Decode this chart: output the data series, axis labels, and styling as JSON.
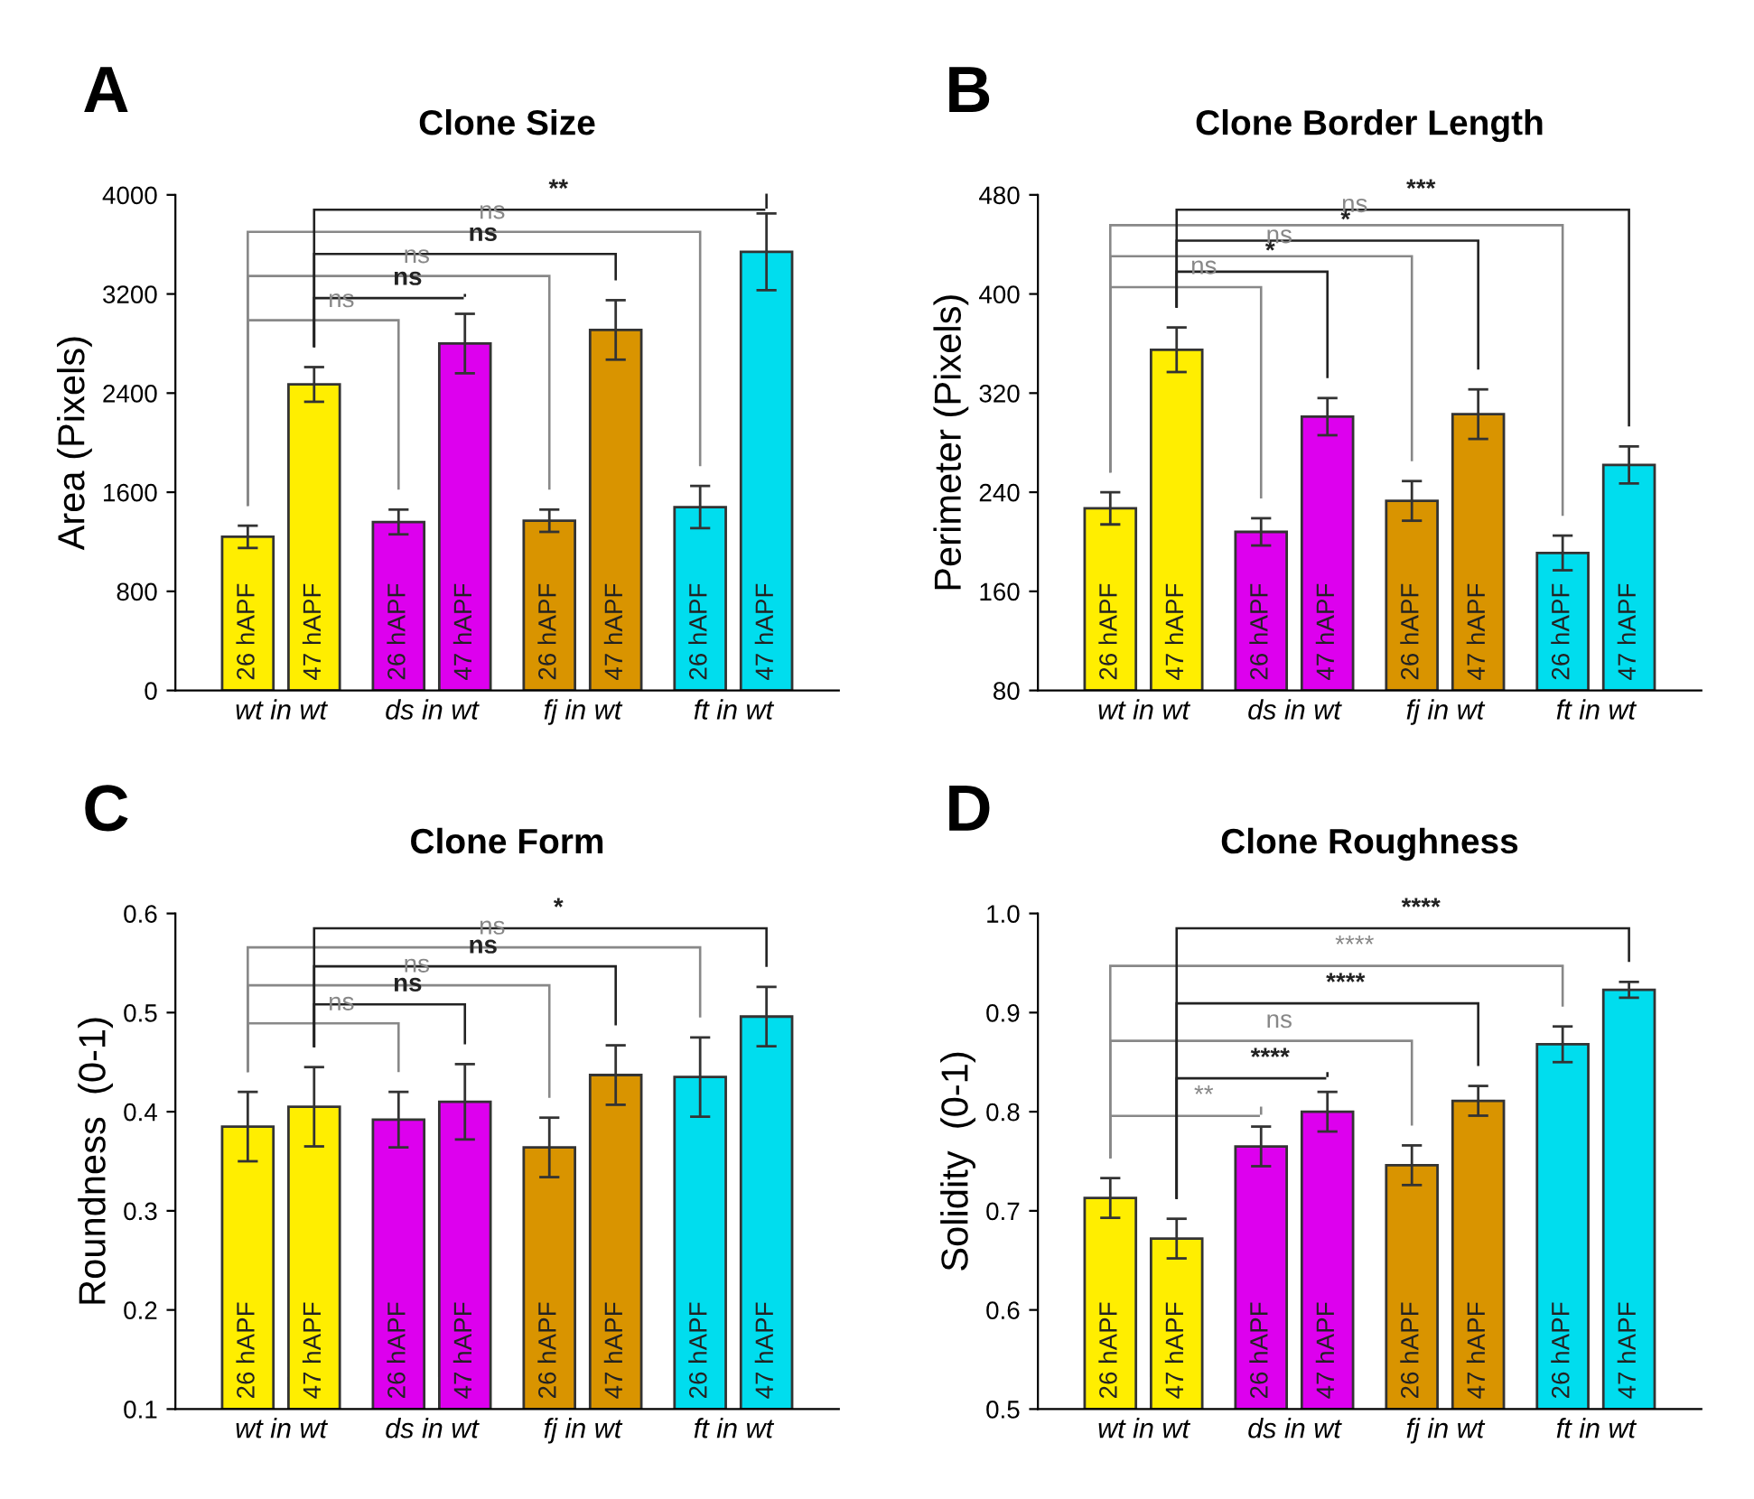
{
  "chart_data": [
    {
      "type": "bar",
      "title": "Clone Size",
      "ylabel": "Area (Pixels)",
      "categories": [
        "wt in wt",
        "ds in wt",
        "fj in wt",
        "ft in wt"
      ],
      "series": [
        {
          "name": "26 hAPF",
          "colors": [
            "#ffee00",
            "#dd00ee",
            "#d99400",
            "#00ddee"
          ],
          "values": [
            1240,
            1360,
            1370,
            1480
          ],
          "errors": [
            90,
            100,
            90,
            170
          ]
        },
        {
          "name": "47 hAPF",
          "colors": [
            "#ffee00",
            "#dd00ee",
            "#d99400",
            "#00ddee"
          ],
          "values": [
            2470,
            2800,
            2910,
            3540
          ],
          "errors": [
            140,
            240,
            240,
            310
          ]
        }
      ],
      "ylim": [
        0,
        4000
      ],
      "yticks": [
        0,
        800,
        1600,
        2400,
        3200,
        4000
      ],
      "annotations": [
        "A",
        "ns",
        "ns",
        "ns",
        "ns",
        "ns",
        "**"
      ]
    },
    {
      "type": "bar",
      "title": "Clone Border Length",
      "ylabel": "Perimeter (Pixels)",
      "categories": [
        "wt in wt",
        "ds in wt",
        "fj in wt",
        "ft in wt"
      ],
      "series": [
        {
          "name": "26 hAPF",
          "colors": [
            "#ffee00",
            "#dd00ee",
            "#d99400",
            "#00ddee"
          ],
          "values": [
            227,
            208,
            233,
            191
          ],
          "errors": [
            13,
            11,
            16,
            14
          ]
        },
        {
          "name": "47 hAPF",
          "colors": [
            "#ffee00",
            "#dd00ee",
            "#d99400",
            "#00ddee"
          ],
          "values": [
            355,
            301,
            303,
            262
          ],
          "errors": [
            18,
            15,
            20,
            15
          ]
        }
      ],
      "ylim": [
        80,
        480
      ],
      "yticks": [
        80,
        160,
        240,
        320,
        400,
        480
      ],
      "annotations": [
        "B",
        "ns",
        "*",
        "ns",
        "*",
        "ns",
        "***"
      ]
    },
    {
      "type": "bar",
      "title": "Clone Form",
      "ylabel": "Roundness  (0-1)",
      "categories": [
        "wt in wt",
        "ds in wt",
        "fj in wt",
        "ft in wt"
      ],
      "series": [
        {
          "name": "26 hAPF",
          "colors": [
            "#ffee00",
            "#dd00ee",
            "#d99400",
            "#00ddee"
          ],
          "values": [
            0.385,
            0.392,
            0.364,
            0.435
          ],
          "errors": [
            0.035,
            0.028,
            0.03,
            0.04
          ]
        },
        {
          "name": "47 hAPF",
          "colors": [
            "#ffee00",
            "#dd00ee",
            "#d99400",
            "#00ddee"
          ],
          "values": [
            0.405,
            0.41,
            0.437,
            0.496
          ],
          "errors": [
            0.04,
            0.038,
            0.03,
            0.03
          ]
        }
      ],
      "ylim": [
        0.1,
        0.6
      ],
      "yticks": [
        0.1,
        0.2,
        0.3,
        0.4,
        0.5,
        0.6
      ],
      "annotations": [
        "C",
        "ns",
        "ns",
        "ns",
        "ns",
        "ns",
        "*"
      ]
    },
    {
      "type": "bar",
      "title": "Clone Roughness",
      "ylabel": "Solidity  (0-1)",
      "categories": [
        "wt in wt",
        "ds in wt",
        "fj in wt",
        "ft in wt"
      ],
      "series": [
        {
          "name": "26 hAPF",
          "colors": [
            "#ffee00",
            "#dd00ee",
            "#d99400",
            "#00ddee"
          ],
          "values": [
            0.713,
            0.765,
            0.746,
            0.868
          ],
          "errors": [
            0.02,
            0.02,
            0.02,
            0.018
          ]
        },
        {
          "name": "47 hAPF",
          "colors": [
            "#ffee00",
            "#dd00ee",
            "#d99400",
            "#00ddee"
          ],
          "values": [
            0.672,
            0.8,
            0.811,
            0.923
          ],
          "errors": [
            0.02,
            0.02,
            0.015,
            0.008
          ]
        }
      ],
      "ylim": [
        0.5,
        1.0
      ],
      "yticks": [
        0.5,
        0.6,
        0.7,
        0.8,
        0.9,
        {
          "value": 1.0,
          "label": "1.0"
        }
      ],
      "annotations": [
        "D",
        "**",
        "****",
        "ns",
        "****",
        "****",
        "****"
      ]
    }
  ]
}
